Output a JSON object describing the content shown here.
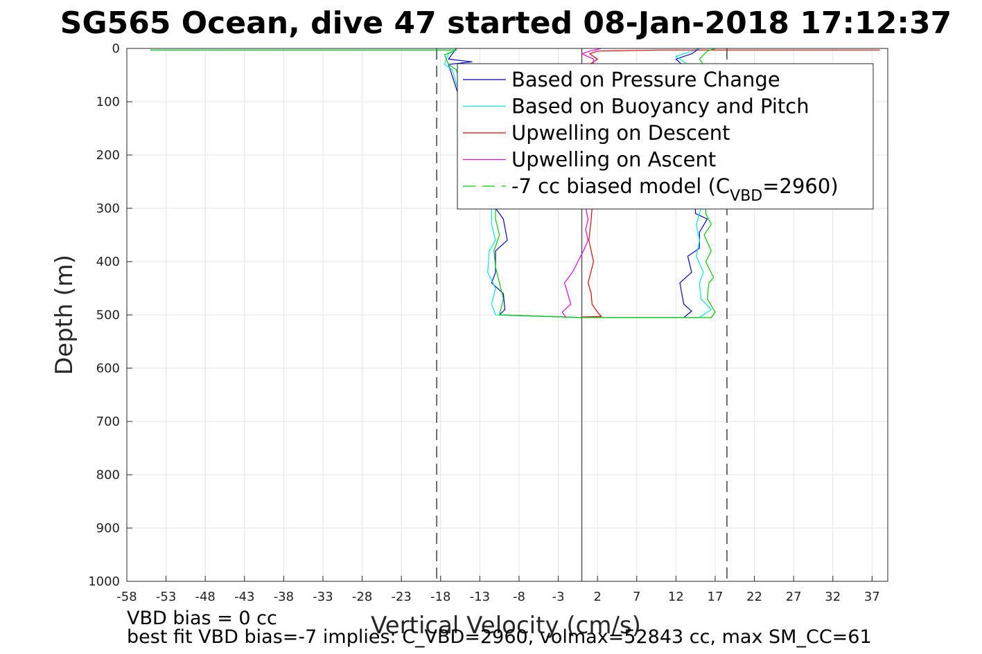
{
  "chart_data": {
    "type": "line",
    "title": "SG565 Ocean, dive 47 started 08-Jan-2018 17:12:37",
    "xlabel": "Vertical Velocity (cm/s)",
    "ylabel": "Depth (m)",
    "xlim": [
      -58,
      39
    ],
    "ylim": [
      0,
      1000
    ],
    "y_reversed": true,
    "grid": true,
    "legend_position": "top-right",
    "xticks": [
      "-58",
      "-53",
      "-48",
      "-43",
      "-38",
      "-33",
      "-28",
      "-23",
      "-18",
      "-13",
      "-8",
      "-3",
      "2",
      "7",
      "12",
      "17",
      "22",
      "27",
      "32",
      "37"
    ],
    "yticks": [
      "0",
      "100",
      "200",
      "300",
      "400",
      "500",
      "600",
      "700",
      "800",
      "900",
      "1000"
    ],
    "reference_lines": [
      {
        "type": "dashed",
        "x": -18.5
      },
      {
        "type": "dashed",
        "x": 18.5
      },
      {
        "type": "solid",
        "x": 0
      }
    ],
    "legend": [
      {
        "label": "Based on Pressure Change",
        "color": "#0000cc",
        "style": "solid"
      },
      {
        "label": "Based on Buoyancy and Pitch",
        "color": "#00e6e6",
        "style": "solid"
      },
      {
        "label": "Upwelling on Descent",
        "color": "#e60000",
        "style": "solid"
      },
      {
        "label": "Upwelling on Ascent",
        "color": "#e600e6",
        "style": "solid"
      },
      {
        "label": "-7 cc biased model (C",
        "sub": "VBD",
        "suffix": "=2960)",
        "color": "#00cc00",
        "style": "dashed"
      }
    ],
    "series": [
      {
        "name": "Based on Pressure Change",
        "color": "#0000cc",
        "points": [
          [
            -16,
            0
          ],
          [
            -16.5,
            10
          ],
          [
            -17,
            20
          ],
          [
            -14,
            25
          ],
          [
            -17,
            30
          ],
          [
            -11,
            300
          ],
          [
            -10,
            320
          ],
          [
            -9.5,
            360
          ],
          [
            -11,
            380
          ],
          [
            -11,
            420
          ],
          [
            -11.5,
            440
          ],
          [
            -10,
            460
          ],
          [
            -9.8,
            490
          ],
          [
            -10.5,
            500
          ],
          [
            0,
            505
          ],
          [
            13,
            505
          ],
          [
            14,
            493
          ],
          [
            13,
            480
          ],
          [
            12.5,
            440
          ],
          [
            14,
            420
          ],
          [
            13.5,
            390
          ],
          [
            15,
            375
          ],
          [
            15,
            345
          ],
          [
            16,
            320
          ],
          [
            14.5,
            310
          ],
          [
            13.5,
            40
          ],
          [
            12,
            20
          ],
          [
            14,
            10
          ],
          [
            15,
            0
          ]
        ]
      },
      {
        "name": "Based on Buoyancy and Pitch",
        "color": "#00e6e6",
        "points": [
          [
            -55,
            3
          ],
          [
            -16,
            3
          ],
          [
            -17,
            10
          ],
          [
            -17.5,
            30
          ],
          [
            -16.5,
            40
          ],
          [
            -11.5,
            300
          ],
          [
            -11.5,
            330
          ],
          [
            -11,
            360
          ],
          [
            -11.8,
            380
          ],
          [
            -12,
            420
          ],
          [
            -11,
            450
          ],
          [
            -11.5,
            480
          ],
          [
            -11,
            500
          ],
          [
            0,
            505
          ],
          [
            15,
            505
          ],
          [
            16.5,
            490
          ],
          [
            15.2,
            470
          ],
          [
            15,
            440
          ],
          [
            15.5,
            420
          ],
          [
            14.6,
            390
          ],
          [
            15,
            360
          ],
          [
            14.6,
            330
          ],
          [
            15.2,
            300
          ],
          [
            13.5,
            30
          ],
          [
            12,
            15
          ],
          [
            14,
            5
          ],
          [
            15,
            0
          ]
        ]
      },
      {
        "name": "Upwelling on Descent",
        "color": "#e60000",
        "points": [
          [
            38,
            3
          ],
          [
            10,
            3
          ],
          [
            2,
            5
          ],
          [
            1,
            10
          ],
          [
            2,
            20
          ],
          [
            1,
            30
          ],
          [
            1.3,
            300
          ],
          [
            1.2,
            320
          ],
          [
            0.9,
            360
          ],
          [
            1.5,
            400
          ],
          [
            0.8,
            440
          ],
          [
            1.2,
            460
          ],
          [
            1.3,
            480
          ],
          [
            2,
            495
          ],
          [
            2.5,
            503
          ],
          [
            0,
            504
          ]
        ]
      },
      {
        "name": "Upwelling on Ascent",
        "color": "#e600e6",
        "points": [
          [
            -2,
            505
          ],
          [
            -2.5,
            495
          ],
          [
            -1.4,
            480
          ],
          [
            -1.8,
            460
          ],
          [
            -2.2,
            440
          ],
          [
            -1.2,
            420
          ],
          [
            -0.5,
            400
          ],
          [
            0.2,
            380
          ],
          [
            0.8,
            360
          ],
          [
            0.5,
            340
          ],
          [
            0.8,
            320
          ],
          [
            0.5,
            300
          ],
          [
            1.5,
            20
          ],
          [
            0,
            10
          ],
          [
            1,
            5
          ],
          [
            2.5,
            0
          ]
        ]
      },
      {
        "name": "-7 cc biased model (CVBD=2960)",
        "color": "#00cc00",
        "points": [
          [
            -55,
            3
          ],
          [
            -16,
            3
          ],
          [
            -17.5,
            12
          ],
          [
            -17,
            30
          ],
          [
            -16,
            40
          ],
          [
            -11,
            300
          ],
          [
            -11,
            320
          ],
          [
            -10.5,
            350
          ],
          [
            -11.2,
            380
          ],
          [
            -11,
            410
          ],
          [
            -10.5,
            440
          ],
          [
            -10,
            470
          ],
          [
            -10.5,
            500
          ],
          [
            0,
            505
          ],
          [
            16.5,
            505
          ],
          [
            17,
            495
          ],
          [
            16,
            470
          ],
          [
            16.2,
            440
          ],
          [
            16.8,
            430
          ],
          [
            15.8,
            400
          ],
          [
            16.5,
            380
          ],
          [
            15.6,
            350
          ],
          [
            16.5,
            330
          ],
          [
            15.8,
            310
          ],
          [
            16,
            40
          ],
          [
            15,
            20
          ],
          [
            16,
            5
          ],
          [
            17,
            0
          ]
        ]
      }
    ]
  },
  "footer": {
    "line1": "VBD bias = 0 cc",
    "line2": "best fit VBD bias=-7 implies: C_VBD=2960, volmax=52843 cc, max SM_CC=61"
  }
}
